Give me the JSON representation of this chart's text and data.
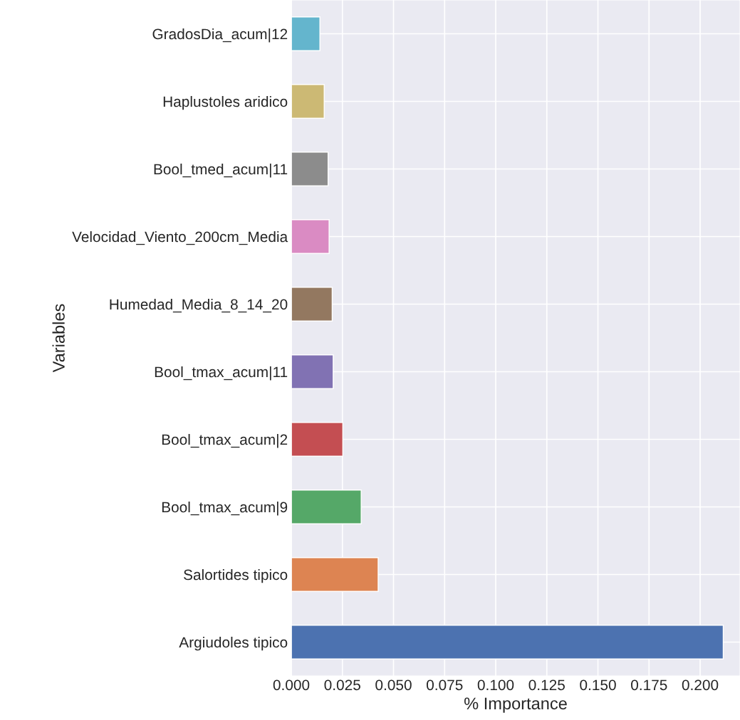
{
  "chart_data": {
    "type": "bar",
    "orientation": "horizontal",
    "xlabel": "% Importance",
    "ylabel": "Variables",
    "categories": [
      "GradosDia_acum|12",
      "Haplustoles aridico",
      "Bool_tmed_acum|11",
      "Velocidad_Viento_200cm_Media",
      "Humedad_Media_8_14_20",
      "Bool_tmax_acum|11",
      "Bool_tmax_acum|2",
      "Bool_tmax_acum|9",
      "Salortides tipico",
      "Argiudoles tipico"
    ],
    "values": [
      0.014,
      0.0161,
      0.018,
      0.0185,
      0.02,
      0.0205,
      0.0252,
      0.0342,
      0.0425,
      0.2113
    ],
    "colors": [
      "#64b5cd",
      "#ccb974",
      "#8c8c8c",
      "#da8bc3",
      "#937860",
      "#8172b3",
      "#c44e52",
      "#55a868",
      "#dd8452",
      "#4c72b0"
    ],
    "xlim": [
      0,
      0.2195
    ],
    "xticks": [
      {
        "value": 0,
        "label": "0.000"
      },
      {
        "value": 0.025,
        "label": "0.025"
      },
      {
        "value": 0.05,
        "label": "0.050"
      },
      {
        "value": 0.075,
        "label": "0.075"
      },
      {
        "value": 0.1,
        "label": "0.100"
      },
      {
        "value": 0.125,
        "label": "0.125"
      },
      {
        "value": 0.15,
        "label": "0.150"
      },
      {
        "value": 0.175,
        "label": "0.175"
      },
      {
        "value": 0.2,
        "label": "0.200"
      }
    ],
    "grid": true
  }
}
